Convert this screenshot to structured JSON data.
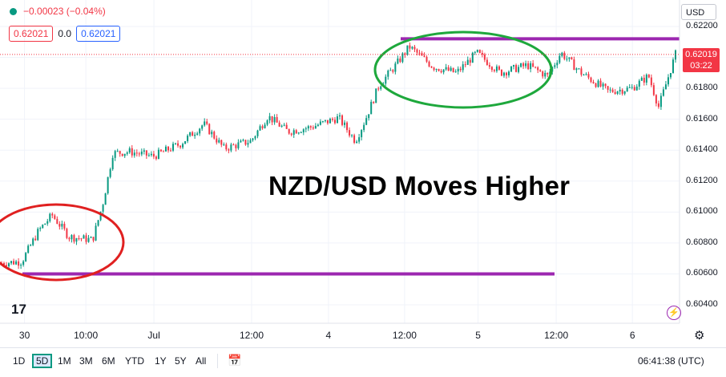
{
  "legend": {
    "change": "−0.00023 (−0.04%)",
    "sell_price": "0.62021",
    "spread": "0.0",
    "buy_price": "0.62021"
  },
  "currency_button": "USD",
  "last_price": {
    "price": "0.62019",
    "countdown": "03:22"
  },
  "headline": "NZD/USD Moves Higher",
  "logo_text": "17",
  "timeframes": [
    "1D",
    "5D",
    "1M",
    "3M",
    "6M",
    "YTD",
    "1Y",
    "5Y",
    "All"
  ],
  "active_timeframe": "5D",
  "clock": "06:41:38 (UTC)",
  "colors": {
    "up": "#089981",
    "down": "#f23645",
    "annotation_line": "#9c27b0",
    "red_circle": "#e02020",
    "green_circle": "#1ea83c"
  },
  "chart_data": {
    "type": "candlestick",
    "title": "",
    "ylabel": "",
    "ylim": [
      0.6032,
      0.623
    ],
    "yticks": [
      "0.62200",
      "0.62000",
      "0.61800",
      "0.61600",
      "0.61400",
      "0.61200",
      "0.61000",
      "0.60800",
      "0.60600",
      "0.60400"
    ],
    "xticks": [
      "30",
      "10:00",
      "Jul",
      "12:00",
      "4",
      "12:00",
      "5",
      "12:00",
      "6"
    ],
    "close_path": [
      {
        "t": 0,
        "v": 0.6067
      },
      {
        "t": 0.03,
        "v": 0.6068
      },
      {
        "t": 0.055,
        "v": 0.6088
      },
      {
        "t": 0.075,
        "v": 0.6098
      },
      {
        "t": 0.1,
        "v": 0.6084
      },
      {
        "t": 0.135,
        "v": 0.6082
      },
      {
        "t": 0.15,
        "v": 0.6105
      },
      {
        "t": 0.165,
        "v": 0.6138
      },
      {
        "t": 0.19,
        "v": 0.6139
      },
      {
        "t": 0.225,
        "v": 0.6136
      },
      {
        "t": 0.265,
        "v": 0.6144
      },
      {
        "t": 0.3,
        "v": 0.6157
      },
      {
        "t": 0.33,
        "v": 0.6141
      },
      {
        "t": 0.37,
        "v": 0.6146
      },
      {
        "t": 0.395,
        "v": 0.6162
      },
      {
        "t": 0.425,
        "v": 0.6152
      },
      {
        "t": 0.46,
        "v": 0.6155
      },
      {
        "t": 0.5,
        "v": 0.6161
      },
      {
        "t": 0.525,
        "v": 0.6146
      },
      {
        "t": 0.54,
        "v": 0.616
      },
      {
        "t": 0.56,
        "v": 0.6182
      },
      {
        "t": 0.585,
        "v": 0.6195
      },
      {
        "t": 0.605,
        "v": 0.6207
      },
      {
        "t": 0.64,
        "v": 0.6194
      },
      {
        "t": 0.675,
        "v": 0.619
      },
      {
        "t": 0.705,
        "v": 0.6203
      },
      {
        "t": 0.74,
        "v": 0.619
      },
      {
        "t": 0.78,
        "v": 0.6195
      },
      {
        "t": 0.81,
        "v": 0.6188
      },
      {
        "t": 0.83,
        "v": 0.6203
      },
      {
        "t": 0.86,
        "v": 0.619
      },
      {
        "t": 0.9,
        "v": 0.6178
      },
      {
        "t": 0.935,
        "v": 0.618
      },
      {
        "t": 0.96,
        "v": 0.6188
      },
      {
        "t": 0.975,
        "v": 0.6168
      },
      {
        "t": 1.0,
        "v": 0.6202
      }
    ],
    "annotations": {
      "support_line": 0.606,
      "resistance_line": 0.6212,
      "red_circle_label": "",
      "green_circle_label": ""
    },
    "grid": true
  }
}
